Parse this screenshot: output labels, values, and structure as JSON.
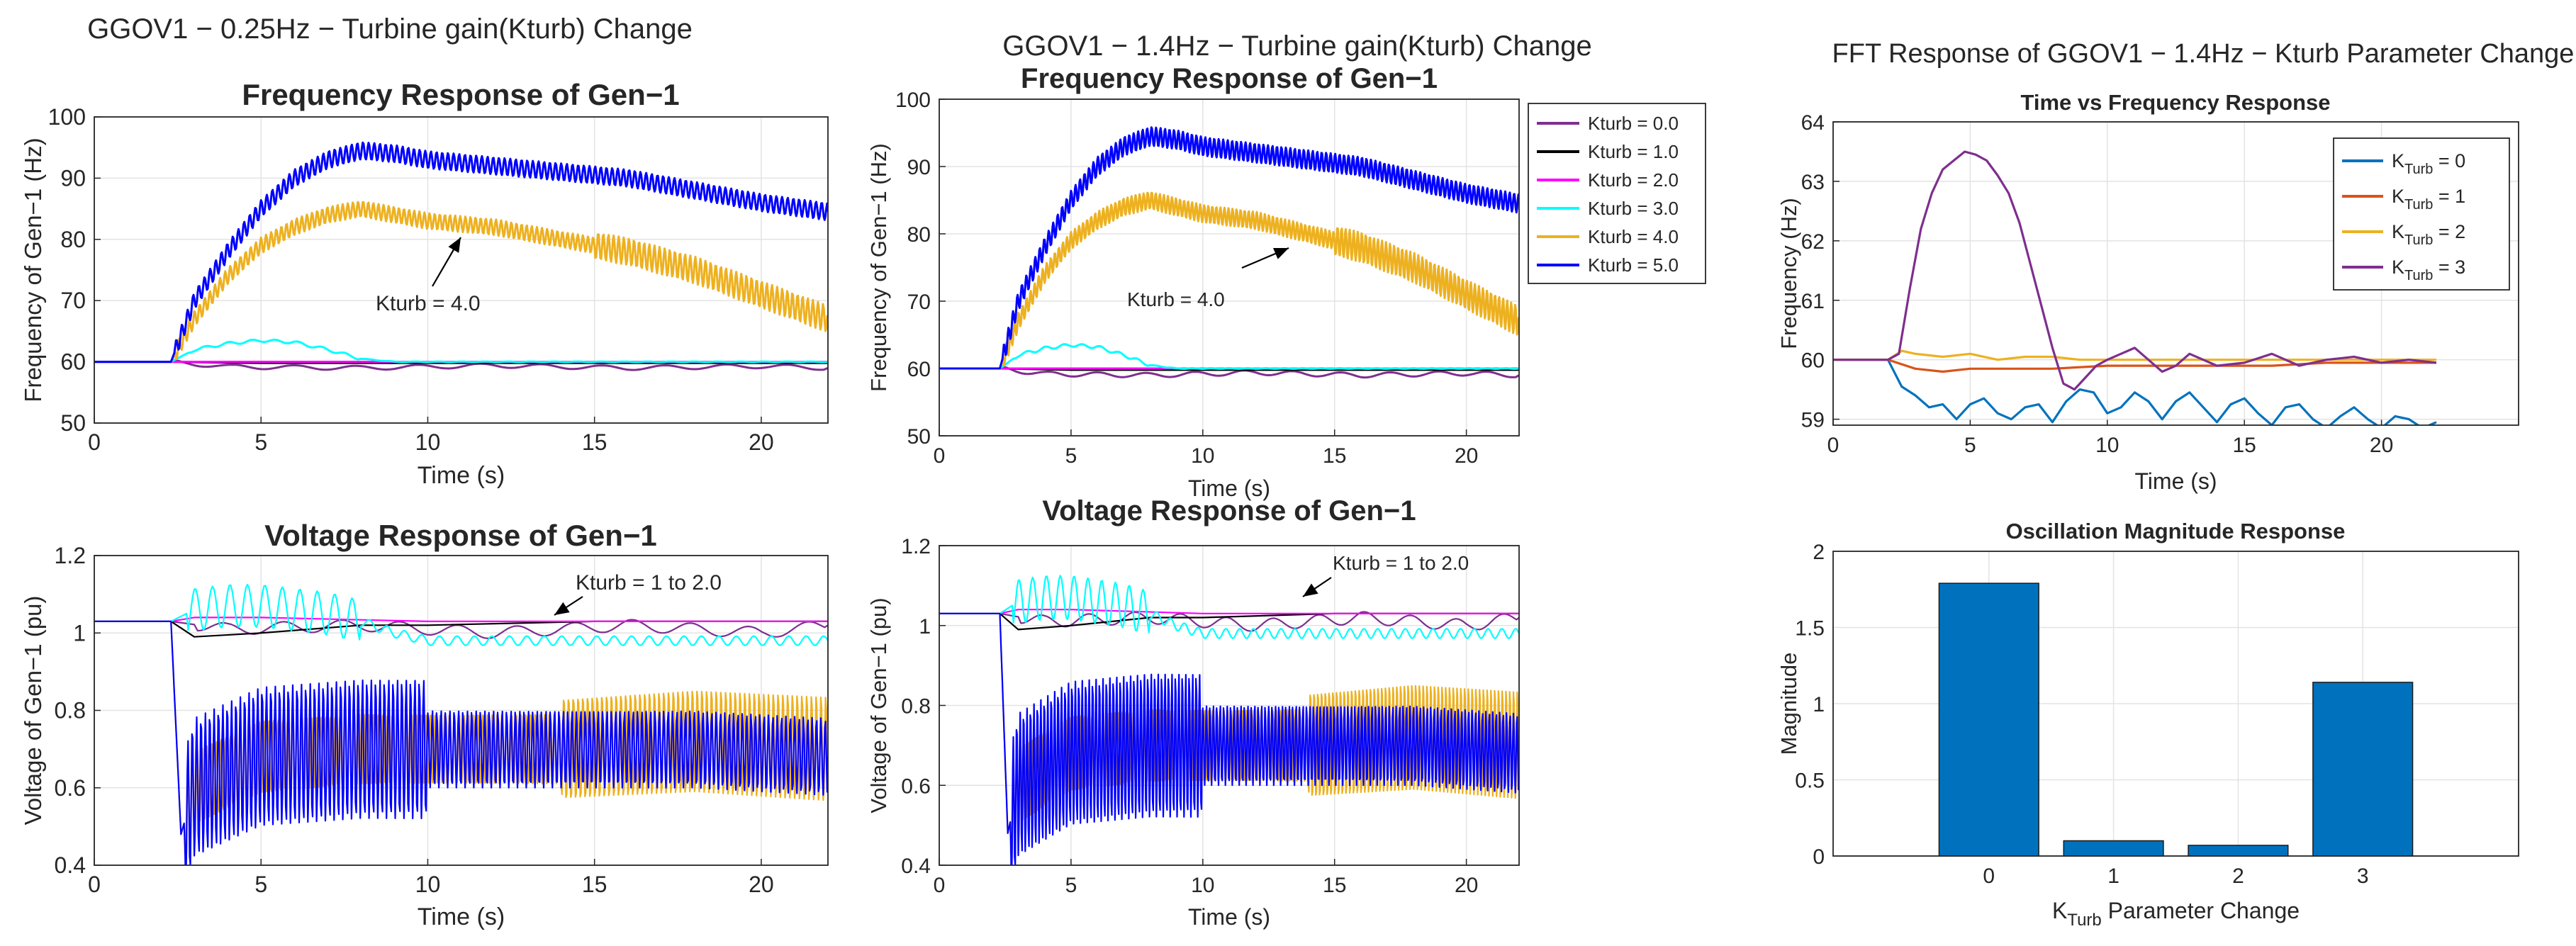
{
  "page": {
    "title_a": "GGOV1 − 0.25Hz − Turbine gain(Kturb) Change",
    "title_b": "GGOV1 − 1.4Hz − Turbine gain(Kturb) Change",
    "title_c": "FFT Response of GGOV1 − 1.4Hz − Kturb Parameter Change"
  },
  "legend_kturb": [
    {
      "label": "Kturb = 0.0",
      "color": "#7E2F8E"
    },
    {
      "label": "Kturb = 1.0",
      "color": "#000000"
    },
    {
      "label": "Kturb = 2.0",
      "color": "#FF00FF"
    },
    {
      "label": "Kturb = 3.0",
      "color": "#00FFFF"
    },
    {
      "label": "Kturb = 4.0",
      "color": "#EDB120"
    },
    {
      "label": "Kturb = 5.0",
      "color": "#0000FF"
    }
  ],
  "legend_fft": [
    {
      "base": "K",
      "sub": "Turb",
      "rest": " = 0",
      "color": "#0072BD"
    },
    {
      "base": "K",
      "sub": "Turb",
      "rest": " = 1",
      "color": "#D95319"
    },
    {
      "base": "K",
      "sub": "Turb",
      "rest": " = 2",
      "color": "#EDB120"
    },
    {
      "base": "K",
      "sub": "Turb",
      "rest": " = 3",
      "color": "#7E2F8E"
    }
  ],
  "chart_data": [
    {
      "id": "freq_a",
      "type": "line",
      "title": "Frequency Response of Gen−1",
      "xlabel": "Time (s)",
      "ylabel": "Frequency of Gen−1 (Hz)",
      "xlim": [
        0,
        22
      ],
      "ylim": [
        50,
        100
      ],
      "xticks": [
        "0",
        "5",
        "10",
        "15",
        "20"
      ],
      "yticks": [
        "50",
        "60",
        "70",
        "80",
        "90",
        "100"
      ],
      "annotation": "Kturb = 4.0",
      "series": [
        {
          "name": "Kturb = 0.0",
          "color": "#7E2F8E",
          "x": [
            0,
            2.3,
            4,
            8,
            12,
            16,
            20,
            22
          ],
          "y": [
            60,
            60,
            59.2,
            59,
            59.4,
            59,
            59.3,
            59
          ]
        },
        {
          "name": "Kturb = 1.0",
          "color": "#000000",
          "x": [
            0,
            2.3,
            5,
            10,
            15,
            20,
            22
          ],
          "y": [
            60,
            60,
            59.8,
            59.8,
            59.8,
            59.8,
            59.8
          ]
        },
        {
          "name": "Kturb = 2.0",
          "color": "#FF00FF",
          "x": [
            0,
            2.3,
            22
          ],
          "y": [
            60,
            60,
            60
          ]
        },
        {
          "name": "Kturb = 3.0",
          "color": "#00FFFF",
          "x": [
            0,
            2.3,
            3,
            4,
            5,
            6,
            7,
            8,
            9,
            10,
            12,
            15,
            22
          ],
          "y": [
            60,
            60,
            62,
            63,
            63.5,
            63.2,
            62,
            60.5,
            60,
            60,
            60,
            60,
            60
          ]
        },
        {
          "name": "Kturb = 4.0",
          "color": "#EDB120",
          "x": [
            0,
            2.3,
            3,
            4,
            5,
            6,
            7,
            8,
            9,
            10,
            12,
            14,
            16,
            18,
            20,
            22
          ],
          "y": [
            60,
            60,
            67,
            74,
            79,
            82,
            84,
            85,
            84,
            83,
            82,
            80,
            78,
            75,
            71,
            67
          ]
        },
        {
          "name": "Kturb = 5.0",
          "color": "#0000FF",
          "x": [
            0,
            2.3,
            3,
            4,
            5,
            6,
            7,
            8,
            9,
            10,
            12,
            14,
            16,
            18,
            20,
            22
          ],
          "y": [
            60,
            60,
            70,
            78,
            85,
            90,
            93,
            94.5,
            94,
            93,
            92,
            91,
            90,
            88,
            86,
            84.5
          ]
        }
      ]
    },
    {
      "id": "freq_b",
      "type": "line",
      "title": "Frequency Response of Gen−1",
      "xlabel": "Time (s)",
      "ylabel": "Frequency of Gen−1 (Hz)",
      "xlim": [
        0,
        22
      ],
      "ylim": [
        50,
        100
      ],
      "xticks": [
        "0",
        "5",
        "10",
        "15",
        "20"
      ],
      "yticks": [
        "50",
        "60",
        "70",
        "80",
        "90",
        "100"
      ],
      "annotation": "Kturb = 4.0",
      "series": [
        {
          "name": "Kturb = 0.0",
          "color": "#7E2F8E",
          "x": [
            0,
            2.3,
            4,
            8,
            12,
            16,
            20,
            22
          ],
          "y": [
            60,
            60,
            59.2,
            59,
            59.4,
            59,
            59.3,
            59
          ]
        },
        {
          "name": "Kturb = 1.0",
          "color": "#000000",
          "x": [
            0,
            2.3,
            5,
            10,
            15,
            20,
            22
          ],
          "y": [
            60,
            60,
            59.8,
            59.8,
            59.8,
            59.8,
            59.8
          ]
        },
        {
          "name": "Kturb = 2.0",
          "color": "#FF00FF",
          "x": [
            0,
            2.3,
            22
          ],
          "y": [
            60,
            60,
            60
          ]
        },
        {
          "name": "Kturb = 3.0",
          "color": "#00FFFF",
          "x": [
            0,
            2.3,
            3,
            4,
            5,
            6,
            7,
            8,
            9,
            10,
            12,
            15,
            22
          ],
          "y": [
            60,
            60,
            62,
            63,
            63.5,
            63.2,
            62,
            60.5,
            60,
            60,
            60,
            60,
            60
          ]
        },
        {
          "name": "Kturb = 4.0",
          "color": "#EDB120",
          "x": [
            0,
            2.3,
            3,
            4,
            5,
            6,
            7,
            8,
            9,
            10,
            12,
            14,
            16,
            18,
            20,
            22
          ],
          "y": [
            60,
            60,
            67,
            74,
            79,
            82,
            84,
            85,
            84,
            83,
            82,
            80,
            78,
            75,
            71,
            67
          ]
        },
        {
          "name": "Kturb = 5.0",
          "color": "#0000FF",
          "x": [
            0,
            2.3,
            3,
            4,
            5,
            6,
            7,
            8,
            9,
            10,
            12,
            14,
            16,
            18,
            20,
            22
          ],
          "y": [
            60,
            60,
            70,
            78,
            85,
            90,
            93,
            94.5,
            94,
            93,
            92,
            91,
            90,
            88,
            86,
            84.5
          ]
        }
      ]
    },
    {
      "id": "volt_a",
      "type": "line",
      "title": "Voltage Response of Gen−1",
      "xlabel": "Time (s)",
      "ylabel": "Voltage of Gen−1 (pu)",
      "xlim": [
        0,
        22
      ],
      "ylim": [
        0.4,
        1.2
      ],
      "xticks": [
        "0",
        "5",
        "10",
        "15",
        "20"
      ],
      "yticks": [
        "0.4",
        "0.6",
        "0.8",
        "1",
        "1.2"
      ],
      "annotation": "Kturb = 1 to 2.0",
      "series": [
        {
          "name": "Kturb = 0.0",
          "color": "#7E2F8E",
          "x": [
            0,
            2.3,
            4,
            8,
            12,
            16,
            20,
            22
          ],
          "y": [
            1.03,
            1.03,
            1.01,
            1.02,
            1.0,
            1.02,
            1.0,
            1.02
          ]
        },
        {
          "name": "Kturb = 1.0",
          "color": "#000000",
          "x": [
            0,
            2.3,
            3,
            5,
            8,
            10,
            15,
            22
          ],
          "y": [
            1.03,
            1.03,
            0.99,
            1.0,
            1.02,
            1.02,
            1.03,
            1.03
          ]
        },
        {
          "name": "Kturb = 2.0",
          "color": "#FF00FF",
          "x": [
            0,
            2.3,
            3,
            5,
            10,
            22
          ],
          "y": [
            1.03,
            1.03,
            1.04,
            1.04,
            1.03,
            1.03
          ]
        },
        {
          "name": "Kturb = 3.0",
          "color": "#00FFFF",
          "x": [
            0,
            2.3,
            3,
            4,
            5,
            6,
            7,
            8,
            9,
            10,
            12,
            15,
            22
          ],
          "y": [
            1.03,
            1.03,
            1.06,
            1.07,
            1.07,
            1.06,
            1.05,
            1.03,
            1.0,
            0.98,
            0.98,
            0.98,
            0.98
          ]
        },
        {
          "name": "Kturb = 4.0",
          "color": "#EDB120",
          "x": [
            0,
            2.3,
            2.6,
            3,
            5,
            8,
            10,
            14,
            18,
            22
          ],
          "y": [
            1.03,
            1.03,
            0.48,
            0.6,
            0.68,
            0.7,
            0.7,
            0.7,
            0.72,
            0.7
          ]
        },
        {
          "name": "Kturb = 5.0",
          "color": "#0000FF",
          "x": [
            0,
            2.3,
            2.6,
            3,
            5,
            8,
            10,
            14,
            18,
            22
          ],
          "y": [
            1.03,
            1.03,
            0.48,
            0.6,
            0.68,
            0.7,
            0.7,
            0.7,
            0.7,
            0.68
          ]
        }
      ]
    },
    {
      "id": "volt_b",
      "type": "line",
      "title": "Voltage Response of Gen−1",
      "xlabel": "Time (s)",
      "ylabel": "Voltage of Gen−1 (pu)",
      "xlim": [
        0,
        22
      ],
      "ylim": [
        0.4,
        1.2
      ],
      "xticks": [
        "0",
        "5",
        "10",
        "15",
        "20"
      ],
      "yticks": [
        "0.4",
        "0.6",
        "0.8",
        "1",
        "1.2"
      ],
      "annotation": "Kturb = 1 to 2.0",
      "series": [
        {
          "name": "Kturb = 0.0",
          "color": "#7E2F8E",
          "x": [
            0,
            2.3,
            4,
            8,
            12,
            16,
            20,
            22
          ],
          "y": [
            1.03,
            1.03,
            1.01,
            1.02,
            1.0,
            1.02,
            1.0,
            1.02
          ]
        },
        {
          "name": "Kturb = 1.0",
          "color": "#000000",
          "x": [
            0,
            2.3,
            3,
            5,
            8,
            10,
            15,
            22
          ],
          "y": [
            1.03,
            1.03,
            0.99,
            1.0,
            1.02,
            1.02,
            1.03,
            1.03
          ]
        },
        {
          "name": "Kturb = 2.0",
          "color": "#FF00FF",
          "x": [
            0,
            2.3,
            3,
            5,
            10,
            22
          ],
          "y": [
            1.03,
            1.03,
            1.04,
            1.04,
            1.03,
            1.03
          ]
        },
        {
          "name": "Kturb = 3.0",
          "color": "#00FFFF",
          "x": [
            0,
            2.3,
            3,
            4,
            5,
            6,
            7,
            8,
            9,
            10,
            12,
            15,
            22
          ],
          "y": [
            1.03,
            1.03,
            1.06,
            1.07,
            1.07,
            1.06,
            1.05,
            1.03,
            1.0,
            0.98,
            0.98,
            0.98,
            0.98
          ]
        },
        {
          "name": "Kturb = 4.0",
          "color": "#EDB120",
          "x": [
            0,
            2.3,
            2.6,
            3,
            5,
            8,
            10,
            14,
            18,
            22
          ],
          "y": [
            1.03,
            1.03,
            0.48,
            0.6,
            0.68,
            0.7,
            0.7,
            0.7,
            0.72,
            0.7
          ]
        },
        {
          "name": "Kturb = 5.0",
          "color": "#0000FF",
          "x": [
            0,
            2.3,
            2.6,
            3,
            5,
            8,
            10,
            14,
            18,
            22
          ],
          "y": [
            1.03,
            1.03,
            0.48,
            0.6,
            0.68,
            0.7,
            0.7,
            0.7,
            0.7,
            0.68
          ]
        }
      ]
    },
    {
      "id": "fft_time",
      "type": "line",
      "title": "Time vs Frequency Response",
      "xlabel": "Time (s)",
      "ylabel": "Frequency (Hz)",
      "xlim": [
        0,
        25
      ],
      "ylim": [
        58.9,
        64
      ],
      "xticks": [
        "0",
        "5",
        "10",
        "15",
        "20"
      ],
      "yticks": [
        "59",
        "60",
        "61",
        "62",
        "63",
        "64"
      ],
      "series": [
        {
          "name": "KTurb = 0",
          "color": "#0072BD",
          "x": [
            0,
            2,
            2.5,
            3,
            3.5,
            4,
            4.5,
            5,
            5.5,
            6,
            6.5,
            7,
            7.5,
            8,
            8.5,
            9,
            9.5,
            10,
            10.5,
            11,
            11.5,
            12,
            12.5,
            13,
            13.5,
            14,
            14.5,
            15,
            15.5,
            16,
            16.5,
            17,
            17.5,
            18,
            18.5,
            19,
            19.5,
            20,
            20.5,
            21,
            21.5,
            22
          ],
          "y": [
            60,
            60,
            59.55,
            59.4,
            59.2,
            59.25,
            59.0,
            59.25,
            59.35,
            59.1,
            59.0,
            59.2,
            59.25,
            58.95,
            59.3,
            59.5,
            59.45,
            59.1,
            59.2,
            59.45,
            59.3,
            59.0,
            59.3,
            59.45,
            59.2,
            58.95,
            59.25,
            59.35,
            59.1,
            58.9,
            59.2,
            59.25,
            59.0,
            58.85,
            59.05,
            59.2,
            59.0,
            58.85,
            59.05,
            59.0,
            58.85,
            58.95
          ]
        },
        {
          "name": "KTurb = 1",
          "color": "#D95319",
          "x": [
            0,
            2,
            3,
            4,
            5,
            6,
            8,
            10,
            12,
            14,
            16,
            18,
            20,
            22
          ],
          "y": [
            60,
            60,
            59.85,
            59.8,
            59.85,
            59.85,
            59.85,
            59.9,
            59.9,
            59.9,
            59.9,
            59.95,
            59.95,
            59.95
          ]
        },
        {
          "name": "KTurb = 2",
          "color": "#EDB120",
          "x": [
            0,
            2,
            2.5,
            3,
            4,
            5,
            6,
            7,
            8,
            9,
            10,
            11,
            12,
            14,
            16,
            18,
            20,
            22
          ],
          "y": [
            60,
            60,
            60.15,
            60.1,
            60.05,
            60.1,
            60.0,
            60.05,
            60.05,
            60.0,
            60.0,
            60.0,
            60.0,
            60.0,
            60.0,
            60.0,
            60.0,
            60.0
          ]
        },
        {
          "name": "KTurb = 3",
          "color": "#7E2F8E",
          "x": [
            0,
            2,
            2.4,
            2.8,
            3.2,
            3.6,
            4,
            4.4,
            4.8,
            5.2,
            5.6,
            6,
            6.4,
            6.8,
            7.2,
            7.6,
            8,
            8.4,
            8.8,
            9.2,
            9.6,
            10,
            10.5,
            11,
            11.5,
            12,
            12.5,
            13,
            14,
            15,
            16,
            17,
            18,
            19,
            20,
            21,
            22
          ],
          "y": [
            60,
            60,
            60.1,
            61.2,
            62.2,
            62.8,
            63.2,
            63.35,
            63.5,
            63.45,
            63.35,
            63.1,
            62.8,
            62.3,
            61.6,
            60.9,
            60.2,
            59.6,
            59.5,
            59.7,
            59.9,
            60.0,
            60.1,
            60.2,
            60.0,
            59.8,
            59.9,
            60.1,
            59.9,
            59.95,
            60.1,
            59.9,
            60.0,
            60.05,
            59.95,
            60.0,
            59.95
          ]
        }
      ]
    },
    {
      "id": "fft_bar",
      "type": "bar",
      "title": "Oscillation Magnitude Response",
      "xlabel": "KTurb Parameter Change",
      "ylabel": "Magnitude",
      "categories": [
        "0",
        "1",
        "2",
        "3"
      ],
      "values": [
        1.79,
        0.1,
        0.07,
        1.14
      ],
      "ylim": [
        0,
        2
      ],
      "yticks": [
        "0",
        "0.5",
        "1",
        "1.5",
        "2"
      ],
      "color": "#0072BD"
    }
  ]
}
